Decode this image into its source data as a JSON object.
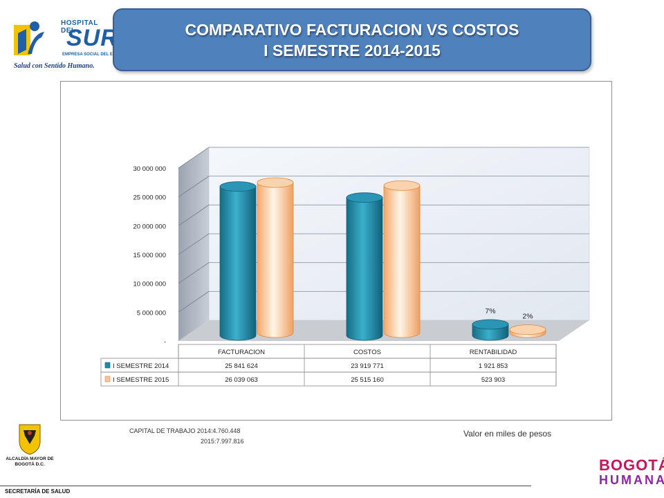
{
  "title": {
    "line1": "COMPARATIVO FACTURACION VS COSTOS",
    "line2": "I SEMESTRE 2014-2015"
  },
  "logos": {
    "hospital_top": "HOSPITAL DEL",
    "hospital_name": "SUR",
    "hospital_sub": "EMPRESA SOCIAL DEL ESTADO",
    "hospital_slogan": "Salud con Sentido Humano.",
    "alcaldia": "ALCALDÍA MAYOR DE BOGOTÁ D.C.",
    "bogota_line1": "BOGOTÁ",
    "bogota_line2": "HUMANA"
  },
  "footer": "SECRETARÍA DE SALUD",
  "note_right": "Valor en miles de pesos",
  "capital": {
    "line1": "CAPITAL DE TRABAJO 2014:4.760.448",
    "line2": "2015:7.997.816"
  },
  "colors": {
    "title_bg": "#4f81bd",
    "series_2014": "#1f8aa8",
    "series_2015": "#f7c39a",
    "series_2015_edge": "#e08a3c"
  },
  "chart_data": {
    "type": "bar",
    "style": "3d-cylinder",
    "categories": [
      "FACTURACION",
      "COSTOS",
      "RENTABILIDAD"
    ],
    "series": [
      {
        "name": "I SEMESTRE 2014",
        "values": [
          25841624,
          23919771,
          1921853
        ],
        "labels": [
          "25 841 624",
          "23 919 771",
          "1 921 853"
        ]
      },
      {
        "name": "I SEMESTRE 2015",
        "values": [
          26039063,
          25515160,
          523903
        ],
        "labels": [
          "26 039 063",
          "25 515 160",
          "523 903"
        ]
      }
    ],
    "yticks": [
      "-",
      "5 000 000",
      "10 000 000",
      "15 000 000",
      "20 000 000",
      "25 000 000",
      "30 000 000"
    ],
    "ylim": [
      0,
      30000000
    ],
    "annotations": [
      {
        "category": "RENTABILIDAD",
        "series": "I SEMESTRE 2014",
        "text": "7%"
      },
      {
        "category": "RENTABILIDAD",
        "series": "I SEMESTRE 2015",
        "text": "2%"
      }
    ],
    "legend": "data-table",
    "grid": true
  }
}
